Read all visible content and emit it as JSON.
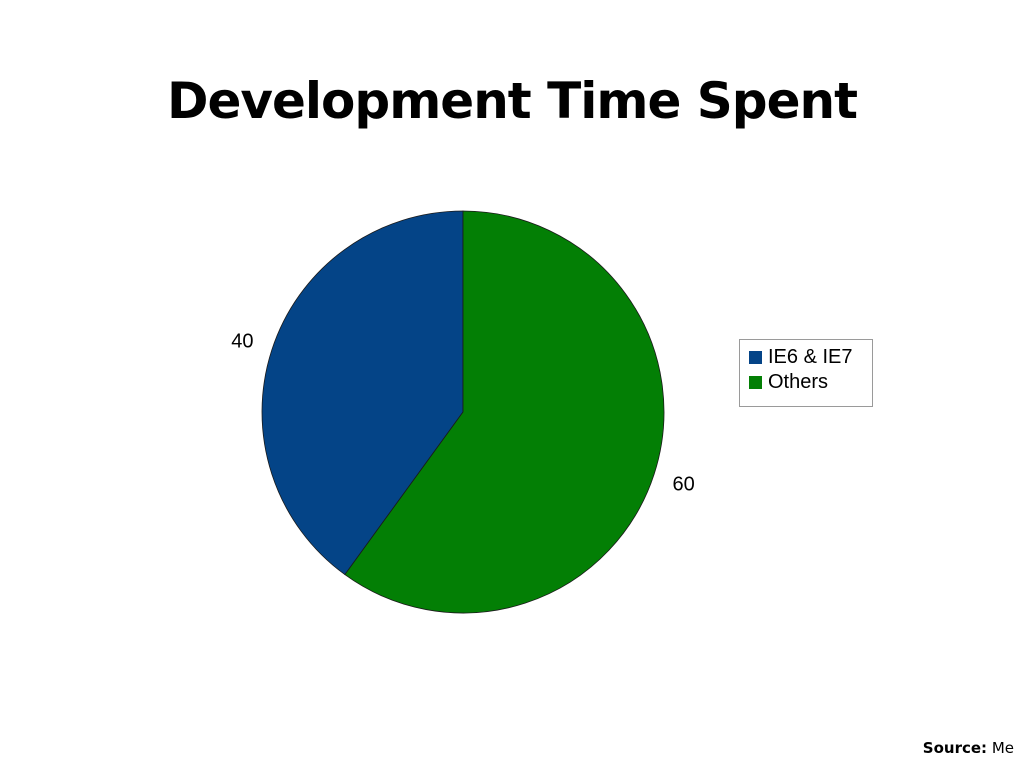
{
  "slide": {
    "title": "Development Time Spent",
    "source_label": "Source:",
    "source_value": "Me"
  },
  "chart_data": {
    "type": "pie",
    "title": "Development Time Spent",
    "categories": [
      "IE6 & IE7",
      "Others"
    ],
    "values": [
      40,
      60
    ],
    "data_labels": [
      "40",
      "60"
    ],
    "colors": [
      "#044487",
      "#037F05"
    ],
    "start_angle": "12 o'clock",
    "direction": "counter-clockwise from top for first slice",
    "legend_position": "right"
  },
  "legend": {
    "items": [
      {
        "label": "IE6 & IE7",
        "color": "#044487"
      },
      {
        "label": "Others",
        "color": "#037F05"
      }
    ]
  }
}
